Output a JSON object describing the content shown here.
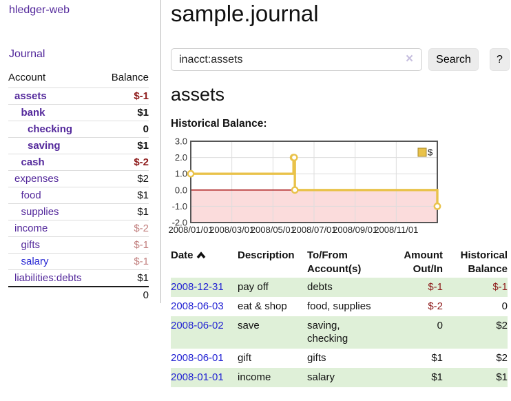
{
  "colors": {
    "link_purple": "#53289b",
    "link_blue": "#2323d3",
    "negative_strong": "#8e1b1b",
    "negative_light": "#c2807f",
    "row_stripe_green": "#dff0d8",
    "chart_line_gold": "#e9c24a",
    "chart_negative_fill": "#fbdcdc",
    "chart_zero_line": "#a00000"
  },
  "sidebar": {
    "app_title": "hledger-web",
    "nav_journal": "Journal",
    "accounts_table": {
      "col_account": "Account",
      "col_balance": "Balance",
      "rows": [
        {
          "name": "assets",
          "depth": 1,
          "name_class": "acct bold",
          "bal": "$-1",
          "bal_class": "neg bold"
        },
        {
          "name": "bank",
          "depth": 2,
          "name_class": "acct bold",
          "bal": "$1",
          "bal_class": "bold"
        },
        {
          "name": "checking",
          "depth": 3,
          "name_class": "acct bold",
          "bal": "0",
          "bal_class": "bold"
        },
        {
          "name": "saving",
          "depth": 3,
          "name_class": "acct bold",
          "bal": "$1",
          "bal_class": "bold"
        },
        {
          "name": "cash",
          "depth": 2,
          "name_class": "acct bold",
          "bal": "$-2",
          "bal_class": "neg bold"
        },
        {
          "name": "expenses",
          "depth": 1,
          "name_class": "acct",
          "bal": "$2",
          "bal_class": ""
        },
        {
          "name": "food",
          "depth": 2,
          "name_class": "acct",
          "bal": "$1",
          "bal_class": ""
        },
        {
          "name": "supplies",
          "depth": 2,
          "name_class": "acct",
          "bal": "$1",
          "bal_class": ""
        },
        {
          "name": "income",
          "depth": 1,
          "name_class": "acct",
          "bal": "$-2",
          "bal_class": "neg-light"
        },
        {
          "name": "gifts",
          "depth": 2,
          "name_class": "acct",
          "bal": "$-1",
          "bal_class": "neg-light"
        },
        {
          "name": "salary",
          "depth": 2,
          "name_class": "acct-blue",
          "bal": "$-1",
          "bal_class": "neg-light"
        },
        {
          "name": "liabilities:debts",
          "depth": 1,
          "name_class": "acct",
          "bal": "$1",
          "bal_class": ""
        }
      ],
      "total": "0"
    }
  },
  "main": {
    "title": "sample.journal",
    "search": {
      "value": "inacct:assets",
      "clear_icon": "×",
      "search_button": "Search",
      "help_button": "?"
    },
    "account_heading": "assets",
    "chart_label": "Historical Balance:",
    "register": {
      "headers": {
        "date": "Date",
        "description": "Description",
        "accounts": "To/From Account(s)",
        "amount": "Amount Out/In",
        "balance": "Historical Balance"
      },
      "rows": [
        {
          "date": "2008-12-31",
          "description": "pay off",
          "accounts": "debts",
          "amount": "$-1",
          "amount_class": "neg",
          "balance": "$-1",
          "balance_class": "neg"
        },
        {
          "date": "2008-06-03",
          "description": "eat & shop",
          "accounts": "food, supplies",
          "amount": "$-2",
          "amount_class": "neg",
          "balance": "0",
          "balance_class": ""
        },
        {
          "date": "2008-06-02",
          "description": "save",
          "accounts": "saving, checking",
          "amount": "0",
          "amount_class": "",
          "balance": "$2",
          "balance_class": ""
        },
        {
          "date": "2008-06-01",
          "description": "gift",
          "accounts": "gifts",
          "amount": "$1",
          "amount_class": "",
          "balance": "$2",
          "balance_class": ""
        },
        {
          "date": "2008-01-01",
          "description": "income",
          "accounts": "salary",
          "amount": "$1",
          "amount_class": "",
          "balance": "$1",
          "balance_class": ""
        }
      ]
    }
  },
  "chart_data": {
    "type": "line",
    "step": true,
    "title": "Historical Balance:",
    "series": [
      {
        "name": "$",
        "points": [
          [
            "2008-01-01",
            1
          ],
          [
            "2008-06-01",
            2
          ],
          [
            "2008-06-02",
            2
          ],
          [
            "2008-06-03",
            0
          ],
          [
            "2008-12-31",
            -1
          ]
        ]
      }
    ],
    "ylim": [
      -2,
      3
    ],
    "yticks": [
      {
        "v": 3,
        "label": "3.0"
      },
      {
        "v": 2,
        "label": "2.0"
      },
      {
        "v": 1,
        "label": "1.0"
      },
      {
        "v": 0,
        "label": "0.0"
      },
      {
        "v": -1,
        "label": "-1.0"
      },
      {
        "v": -2,
        "label": "-2.0"
      }
    ],
    "x_range_months": 12,
    "xticks": [
      {
        "month": 0,
        "label": "2008/01/01"
      },
      {
        "month": 2,
        "label": "2008/03/01"
      },
      {
        "month": 4,
        "label": "2008/05/01"
      },
      {
        "month": 6,
        "label": "2008/07/01"
      },
      {
        "month": 8,
        "label": "2008/09/01"
      },
      {
        "month": 10,
        "label": "2008/11/01"
      }
    ],
    "legend": [
      {
        "label": "$",
        "color": "#e9c24a"
      }
    ],
    "legend_position": "top-right",
    "grid": true,
    "negative_region_shaded": true
  }
}
